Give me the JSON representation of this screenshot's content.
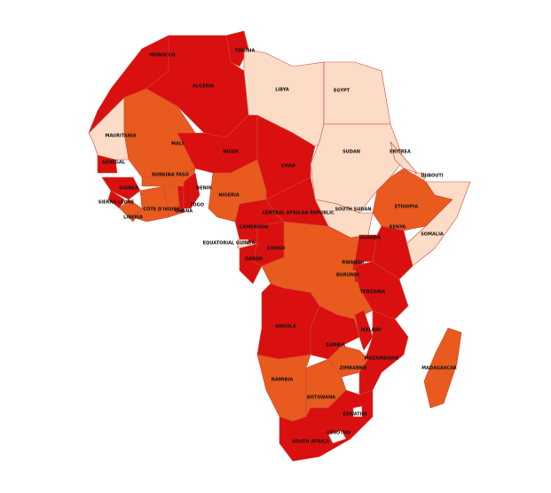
{
  "countries": [
    {
      "name": "MOROCCO",
      "color": "#d9100f"
    },
    {
      "name": "TUNISIA",
      "color": "#d9100f"
    },
    {
      "name": "ALGERIA",
      "color": "#d9100f"
    },
    {
      "name": "LIBYA",
      "color": "#fcdcc6"
    },
    {
      "name": "EGYPT",
      "color": "#fcdcc6"
    },
    {
      "name": "MAURITANIA",
      "color": "#fcdcc6"
    },
    {
      "name": "MALI",
      "color": "#e85a1e"
    },
    {
      "name": "NIGER",
      "color": "#d9100f"
    },
    {
      "name": "CHAD",
      "color": "#d9100f"
    },
    {
      "name": "SUDAN",
      "color": "#fcdcc6"
    },
    {
      "name": "ERITREA",
      "color": "#fcdcc6"
    },
    {
      "name": "DJIBOUTI",
      "color": "#fcdcc6"
    },
    {
      "name": "SENEGAL",
      "color": "#d9100f"
    },
    {
      "name": "GUINEA",
      "color": "#d9100f"
    },
    {
      "name": "SIERRA LEONE",
      "color": "#d9100f"
    },
    {
      "name": "LIBERIA",
      "color": "#e85a1e"
    },
    {
      "name": "BURKINA FASO",
      "color": "#e85a1e"
    },
    {
      "name": "CÔTE D'IVOIRE",
      "color": "#e85a1e"
    },
    {
      "name": "GHANA",
      "color": "#e85a1e"
    },
    {
      "name": "TOGO",
      "color": "#d9100f"
    },
    {
      "name": "BENIN",
      "color": "#d9100f"
    },
    {
      "name": "NIGERIA",
      "color": "#e85a1e"
    },
    {
      "name": "CENTRAL AFRICAN REPUBLIC",
      "color": "#d9100f"
    },
    {
      "name": "SOUTH SUDAN",
      "color": "#fcdcc6"
    },
    {
      "name": "ETHIOPIA",
      "color": "#e85a1e"
    },
    {
      "name": "SOMALIA",
      "color": "#fcdcc6"
    },
    {
      "name": "CAMEROON",
      "color": "#d9100f"
    },
    {
      "name": "EQUATORIAL GUINEA",
      "color": "#fcdcc6"
    },
    {
      "name": "GABON",
      "color": "#d9100f"
    },
    {
      "name": "CONGO",
      "color": "#d9100f"
    },
    {
      "name": "UGANDA",
      "color": "#d9100f"
    },
    {
      "name": "KENYA",
      "color": "#d9100f"
    },
    {
      "name": "RWANDA",
      "color": "#d9100f"
    },
    {
      "name": "BURUNDI",
      "color": "#d9100f"
    },
    {
      "name": "TANZANIA",
      "color": "#d9100f"
    },
    {
      "name": "ANGOLA",
      "color": "#d9100f"
    },
    {
      "name": "ZAMBIA",
      "color": "#d9100f"
    },
    {
      "name": "MALAWI",
      "color": "#d9100f"
    },
    {
      "name": "MOZAMBIQUE",
      "color": "#d9100f"
    },
    {
      "name": "ZIMBABWE",
      "color": "#e85a1e"
    },
    {
      "name": "NAMIBIA",
      "color": "#e85a1e"
    },
    {
      "name": "BOTSWANA",
      "color": "#e85a1e"
    },
    {
      "name": "SOUTH AFRICA",
      "color": "#d9100f"
    },
    {
      "name": "LESOTHO",
      "color": "#ffffff"
    },
    {
      "name": "ESWATINI",
      "color": "#ffffff"
    },
    {
      "name": "MADAGASCAR",
      "color": "#e85a1e"
    }
  ]
}
